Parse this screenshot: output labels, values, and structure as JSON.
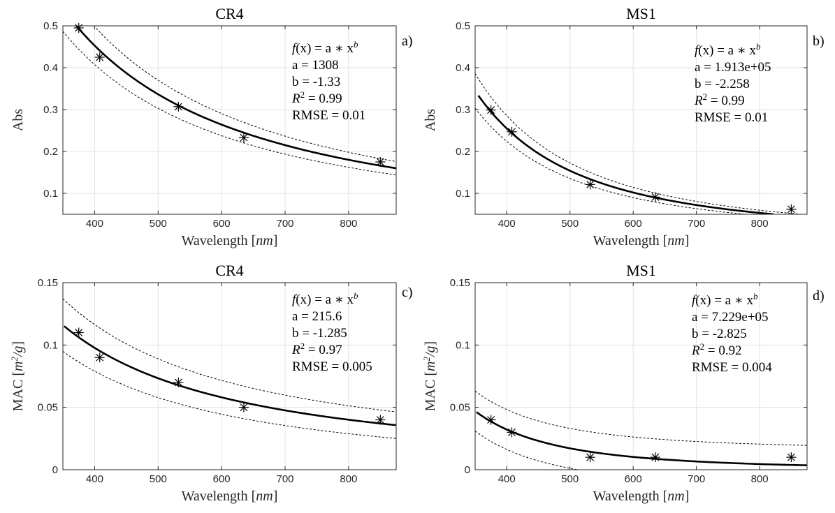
{
  "chart_data": [
    {
      "panel": "a)",
      "type": "scatter",
      "title": "CR4",
      "xlabel_text": "Wavelength",
      "xlabel_unit": "nm",
      "ylabel_text": "Abs",
      "ylabel_unit": "",
      "xlim": [
        350,
        875
      ],
      "ylim": [
        0.05,
        0.5
      ],
      "xticks": [
        400,
        500,
        600,
        700,
        800
      ],
      "yticks": [
        0.1,
        0.2,
        0.3,
        0.4,
        0.5
      ],
      "ytick_labels": [
        "0.1",
        "0.2",
        "0.3",
        "0.4",
        "0.5"
      ],
      "grid": true,
      "points": {
        "x": [
          375,
          408,
          532,
          635,
          850
        ],
        "y": [
          0.495,
          0.425,
          0.307,
          0.233,
          0.175
        ]
      },
      "fit": {
        "a": 1308,
        "b": -1.33,
        "x_range": [
          350,
          875
        ]
      },
      "bounds": {
        "upper_factor": 1.1,
        "lower_factor": 0.9
      },
      "annotation": {
        "formula_lhs": "f",
        "formula_var": "(x)",
        "formula_rhs": "= a ∗ x",
        "formula_exp": "b",
        "a_line": "a = 1308",
        "b_line": "b = -1.33",
        "r2_sym": "R",
        "r2_exp": "2",
        "r2_val": " = 0.99",
        "rmse_line": "RMSE = 0.01"
      }
    },
    {
      "panel": "b)",
      "type": "scatter",
      "title": "MS1",
      "xlabel_text": "Wavelength",
      "xlabel_unit": "nm",
      "ylabel_text": "Abs",
      "ylabel_unit": "",
      "xlim": [
        350,
        875
      ],
      "ylim": [
        0.05,
        0.5
      ],
      "xticks": [
        400,
        500,
        600,
        700,
        800
      ],
      "yticks": [
        0.1,
        0.2,
        0.3,
        0.4,
        0.5
      ],
      "ytick_labels": [
        "0.1",
        "0.2",
        "0.3",
        "0.4",
        "0.5"
      ],
      "grid": true,
      "points": {
        "x": [
          375,
          408,
          532,
          635,
          850
        ],
        "y": [
          0.299,
          0.247,
          0.121,
          0.091,
          0.062
        ]
      },
      "fit": {
        "a": 191300,
        "b": -2.258,
        "x_range": [
          355,
          822
        ]
      },
      "bounds": {
        "upper_factor": 1.12,
        "lower_factor": 0.88
      },
      "annotation": {
        "formula_lhs": "f",
        "formula_var": "(x)",
        "formula_rhs": "= a ∗ x",
        "formula_exp": "b",
        "a_line": "a = 1.913e+05",
        "b_line": "b = -2.258",
        "r2_sym": "R",
        "r2_exp": "2",
        "r2_val": " = 0.99",
        "rmse_line": "RMSE = 0.01"
      }
    },
    {
      "panel": "c)",
      "type": "scatter",
      "title": "CR4",
      "xlabel_text": "Wavelength",
      "xlabel_unit": "nm",
      "ylabel_text": "MAC",
      "ylabel_unit": "m",
      "ylabel_unit_exp": "2",
      "ylabel_unit_den": "/g",
      "xlim": [
        350,
        875
      ],
      "ylim": [
        0,
        0.15
      ],
      "xticks": [
        400,
        500,
        600,
        700,
        800
      ],
      "yticks": [
        0,
        0.05,
        0.1,
        0.15
      ],
      "ytick_labels": [
        "0",
        "0.05",
        "0.1",
        "0.15"
      ],
      "grid": true,
      "points": {
        "x": [
          375,
          408,
          532,
          635,
          850
        ],
        "y": [
          0.11,
          0.09,
          0.07,
          0.05,
          0.04
        ]
      },
      "fit": {
        "a": 215.6,
        "b": -1.285,
        "x_range": [
          352,
          875
        ]
      },
      "bounds": {
        "upper_factor": 1.13,
        "lower_factor": 0.87,
        "offset": 0.006
      },
      "annotation": {
        "formula_lhs": "f",
        "formula_var": "(x)",
        "formula_rhs": "= a ∗ x",
        "formula_exp": "b",
        "a_line": "a = 215.6",
        "b_line": "b = -1.285",
        "r2_sym": "R",
        "r2_exp": "2",
        "r2_val": " = 0.97",
        "rmse_line": "RMSE = 0.005"
      }
    },
    {
      "panel": "d)",
      "type": "scatter",
      "title": "MS1",
      "xlabel_text": "Wavelength",
      "xlabel_unit": "nm",
      "ylabel_text": "MAC",
      "ylabel_unit": "m",
      "ylabel_unit_exp": "2",
      "ylabel_unit_den": "/g",
      "xlim": [
        350,
        875
      ],
      "ylim": [
        0,
        0.15
      ],
      "xticks": [
        400,
        500,
        600,
        700,
        800
      ],
      "yticks": [
        0,
        0.05,
        0.1,
        0.15
      ],
      "ytick_labels": [
        "0",
        "0.05",
        "0.1",
        "0.15"
      ],
      "grid": true,
      "points": {
        "x": [
          375,
          408,
          532,
          635,
          850
        ],
        "y": [
          0.04,
          0.03,
          0.01,
          0.01,
          0.01
        ]
      },
      "fit": {
        "a": 722900,
        "b": -2.825,
        "x_range": [
          352,
          875
        ]
      },
      "bounds": {
        "upper_factor": 1.0,
        "lower_factor": 1.0,
        "offset": 0.016
      },
      "annotation": {
        "formula_lhs": "f",
        "formula_var": "(x)",
        "formula_rhs": "= a ∗ x",
        "formula_exp": "b",
        "a_line": "a = 7.229e+05",
        "b_line": "b = -2.825",
        "r2_sym": "R",
        "r2_exp": "2",
        "r2_val": " = 0.92",
        "rmse_line": "RMSE = 0.004"
      }
    }
  ]
}
